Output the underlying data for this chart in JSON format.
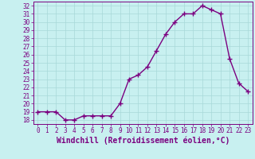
{
  "x": [
    0,
    1,
    2,
    3,
    4,
    5,
    6,
    7,
    8,
    9,
    10,
    11,
    12,
    13,
    14,
    15,
    16,
    17,
    18,
    19,
    20,
    21,
    22,
    23
  ],
  "y": [
    19,
    19,
    19,
    18,
    18,
    18.5,
    18.5,
    18.5,
    18.5,
    20,
    23,
    23.5,
    24.5,
    26.5,
    28.5,
    30,
    31,
    31,
    32,
    31.5,
    31,
    25.5,
    22.5,
    21.5
  ],
  "line_color": "#7b0080",
  "marker": "+",
  "marker_size": 4,
  "marker_lw": 1.0,
  "bg_color": "#c8f0f0",
  "grid_color": "#a8d8d8",
  "xlabel": "Windchill (Refroidissement éolien,°C)",
  "xlim": [
    -0.5,
    23.5
  ],
  "ylim": [
    17.5,
    32.5
  ],
  "yticks": [
    18,
    19,
    20,
    21,
    22,
    23,
    24,
    25,
    26,
    27,
    28,
    29,
    30,
    31,
    32
  ],
  "xticks": [
    0,
    1,
    2,
    3,
    4,
    5,
    6,
    7,
    8,
    9,
    10,
    11,
    12,
    13,
    14,
    15,
    16,
    17,
    18,
    19,
    20,
    21,
    22,
    23
  ],
  "tick_color": "#7b0080",
  "font_color": "#7b0080",
  "tick_fontsize": 5.5,
  "xlabel_fontsize": 7.0,
  "line_width": 1.0
}
